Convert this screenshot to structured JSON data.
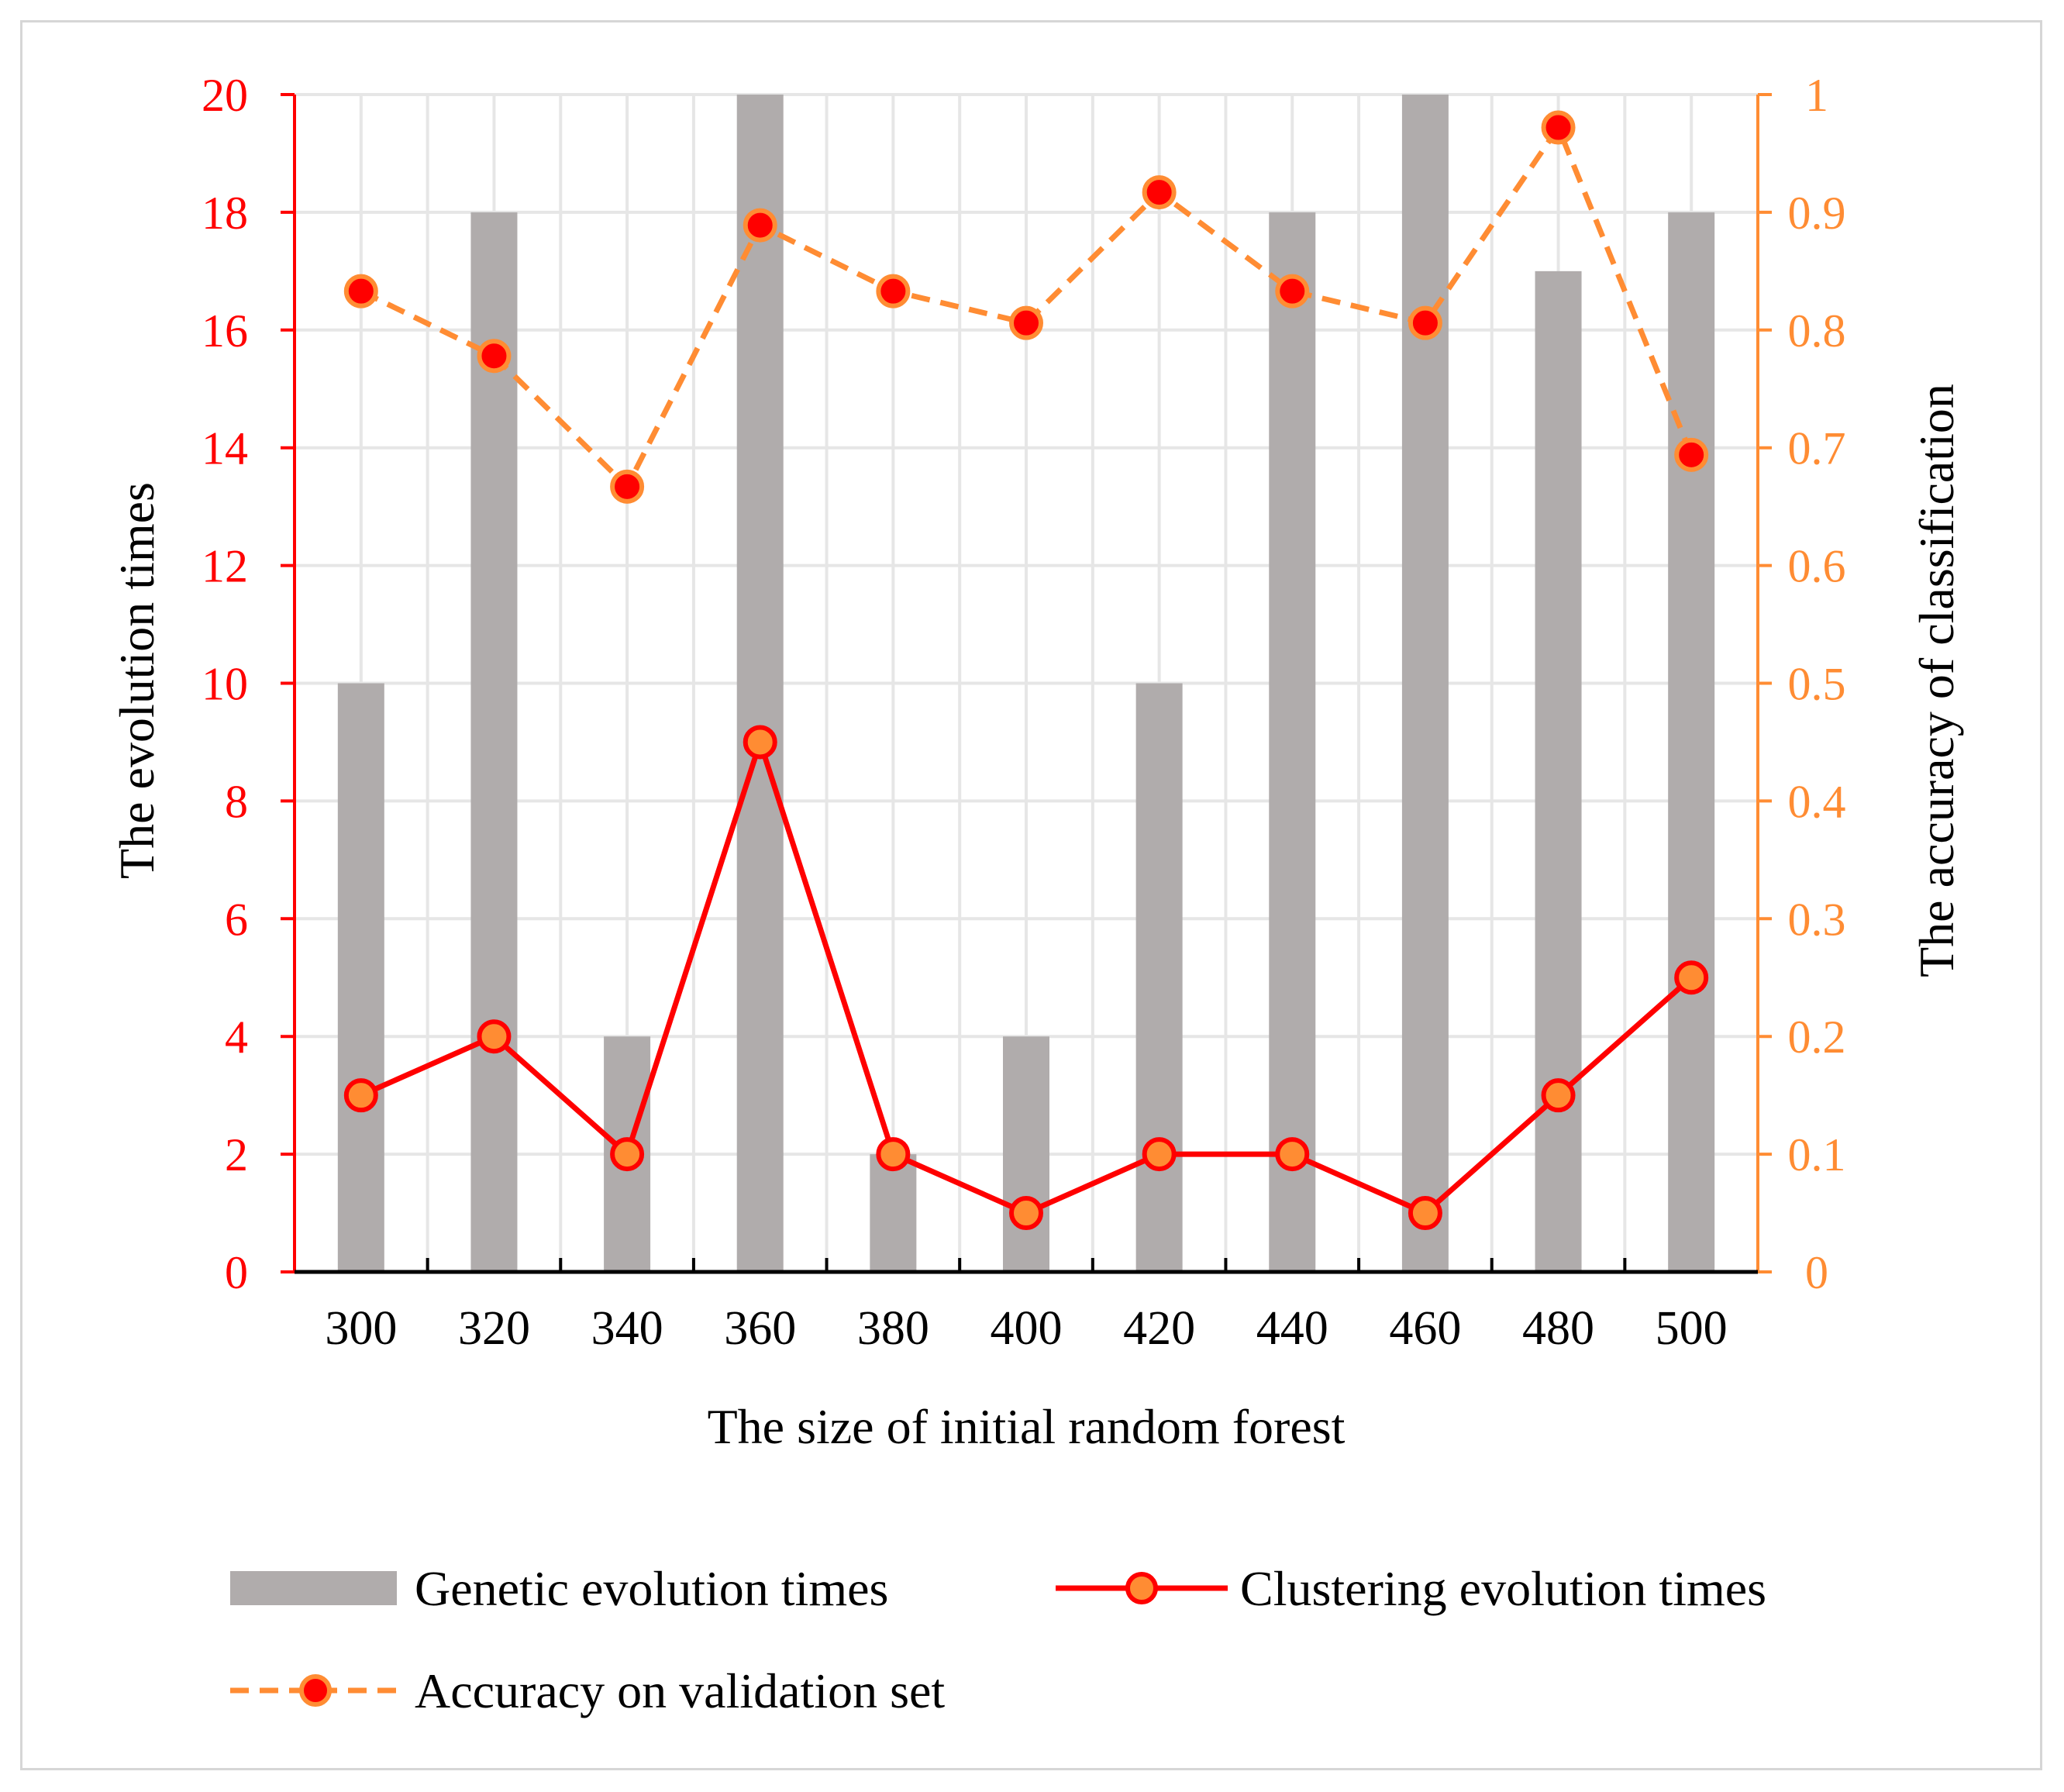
{
  "chart_data": {
    "type": "bar+line",
    "title": "",
    "categories": [
      "300",
      "320",
      "340",
      "360",
      "380",
      "400",
      "420",
      "440",
      "460",
      "480",
      "500"
    ],
    "xlabel": "The size of initial random forest",
    "ylabel": "The evolution times",
    "ylabel_right": "The accuracy of classification",
    "ylim": [
      0,
      20
    ],
    "ylim_right": [
      0,
      1
    ],
    "yticks": [
      "0",
      "2",
      "4",
      "6",
      "8",
      "10",
      "12",
      "14",
      "16",
      "18",
      "20"
    ],
    "yticks_right": [
      "0",
      "0.1",
      "0.2",
      "0.3",
      "0.4",
      "0.5",
      "0.6",
      "0.7",
      "0.8",
      "0.9",
      "1"
    ],
    "series": [
      {
        "name": "Genetic evolution times",
        "type": "bar",
        "axis": "left",
        "color": "#b0acac",
        "values": [
          10,
          18,
          4,
          20,
          2,
          4,
          10,
          18,
          20,
          17,
          18
        ]
      },
      {
        "name": "Clustering evolution times",
        "type": "line",
        "axis": "left",
        "line_color": "#ff0000",
        "marker_fill": "#ff8c33",
        "marker_stroke": "#ff0000",
        "values": [
          3,
          4,
          2,
          9,
          2,
          1,
          2,
          2,
          1,
          3,
          5
        ]
      },
      {
        "name": "Accuracy on validation set",
        "type": "line",
        "axis": "right",
        "line_style": "dashed",
        "line_color": "#ff8c33",
        "marker_fill": "#ff0000",
        "marker_stroke": "#ff8c33",
        "values": [
          0.833,
          0.778,
          0.667,
          0.889,
          0.833,
          0.806,
          0.917,
          0.833,
          0.806,
          0.972,
          0.694
        ]
      }
    ],
    "colors": {
      "left_axis": "#ff0000",
      "right_axis": "#ff8c33",
      "grid": "#e6e6e6",
      "text": "#000000"
    },
    "legend_position": "bottom"
  }
}
